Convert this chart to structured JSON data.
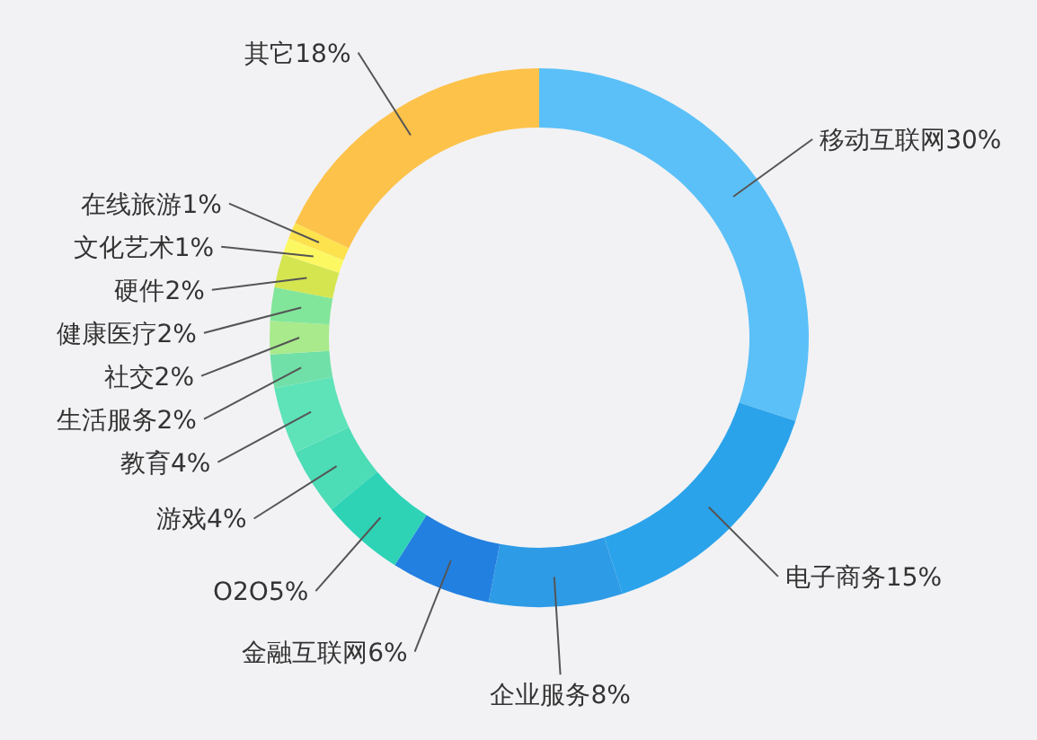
{
  "chart_data": {
    "type": "donut",
    "categories": [
      "移动互联网",
      "电子商务",
      "企业服务",
      "金融互联网",
      "O2O",
      "游戏",
      "教育",
      "生活服务",
      "社交",
      "健康医疗",
      "硬件",
      "文化艺术",
      "在线旅游",
      "其它"
    ],
    "values": [
      30,
      15,
      8,
      6,
      5,
      4,
      4,
      2,
      2,
      2,
      2,
      1,
      1,
      18
    ],
    "value_labels": [
      "30%",
      "15%",
      "8%",
      "6%",
      "5%",
      "4%",
      "4%",
      "2%",
      "2%",
      "2%",
      "2%",
      "1%",
      "1%",
      "18%"
    ],
    "colors": [
      "#5bc0f8",
      "#2ba3ea",
      "#2e9be6",
      "#2280e0",
      "#2ed3b6",
      "#4cdcb6",
      "#5ee3b8",
      "#70e0a8",
      "#a8ea8c",
      "#82e69a",
      "#d4e550",
      "#fcf862",
      "#fde24e",
      "#fdc24a"
    ]
  }
}
